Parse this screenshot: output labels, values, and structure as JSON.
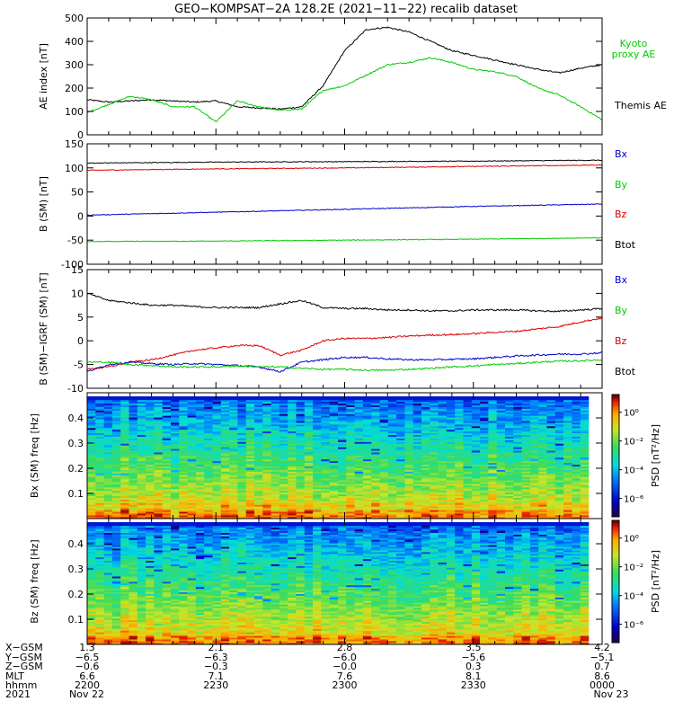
{
  "title": "GEO−KOMPSAT−2A 128.2E (2021−11−22) recalib dataset",
  "colors": {
    "black": "#000000",
    "red": "#dd0000",
    "green": "#00cc00",
    "blue": "#0000cc"
  },
  "colorbar": {
    "label": "PSD [nT²/Hz]",
    "ticks": [
      {
        "label": "10⁰",
        "frac": 0.855
      },
      {
        "label": "10⁻²",
        "frac": 0.62
      },
      {
        "label": "10⁻⁴",
        "frac": 0.385
      },
      {
        "label": "10⁻⁶",
        "frac": 0.15
      }
    ]
  },
  "footer": {
    "row_labels": [
      "X−GSM",
      "Y−GSM",
      "Z−GSM",
      "MLT",
      "hhmm",
      "2021"
    ],
    "columns": [
      {
        "t": 0,
        "vals": [
          "1.3",
          "−6.5",
          "−0.6",
          "6.6",
          "2200",
          "Nov 22"
        ]
      },
      {
        "t": 30,
        "vals": [
          "2.1",
          "−6.3",
          "−0.3",
          "7.1",
          "2230",
          ""
        ]
      },
      {
        "t": 60,
        "vals": [
          "2.8",
          "−6.0",
          "−0.0",
          "7.6",
          "2300",
          ""
        ]
      },
      {
        "t": 90,
        "vals": [
          "3.5",
          "−5.6",
          "0.3",
          "8.1",
          "2330",
          ""
        ]
      },
      {
        "t": 120,
        "vals": [
          "4.2",
          "−5.1",
          "0.7",
          "8.6",
          "0000",
          "Nov 23"
        ]
      }
    ]
  },
  "chart_data": [
    {
      "type": "line",
      "ylabel": "AE index [nT]",
      "xlim": [
        0,
        120
      ],
      "ylim": [
        0,
        500
      ],
      "yticks": [
        0,
        100,
        200,
        300,
        400,
        500
      ],
      "legend": [
        "Kyoto proxy AE",
        "Themis AE"
      ],
      "x": [
        0,
        5,
        10,
        15,
        20,
        25,
        30,
        35,
        40,
        45,
        50,
        55,
        60,
        65,
        70,
        75,
        80,
        85,
        90,
        95,
        100,
        105,
        110,
        115,
        120
      ],
      "series": [
        {
          "name": "Themis AE",
          "color": "black",
          "values": [
            150,
            140,
            145,
            150,
            145,
            140,
            145,
            120,
            115,
            110,
            120,
            210,
            360,
            450,
            460,
            440,
            400,
            360,
            340,
            320,
            300,
            280,
            265,
            285,
            300
          ]
        },
        {
          "name": "Kyoto proxy AE",
          "color": "green",
          "values": [
            95,
            130,
            165,
            150,
            120,
            120,
            55,
            145,
            120,
            105,
            110,
            190,
            210,
            255,
            300,
            310,
            330,
            310,
            280,
            270,
            250,
            200,
            170,
            120,
            65
          ]
        }
      ]
    },
    {
      "type": "line",
      "ylabel": "B (SM) [nT]",
      "xlim": [
        0,
        120
      ],
      "ylim": [
        -100,
        150
      ],
      "yticks": [
        -100,
        -50,
        0,
        50,
        100,
        150
      ],
      "legend": [
        "Bx",
        "By",
        "Bz",
        "Btot"
      ],
      "x": [
        0,
        30,
        60,
        90,
        120
      ],
      "series": [
        {
          "name": "Btot",
          "color": "black",
          "values": [
            110,
            112,
            113,
            114,
            116
          ]
        },
        {
          "name": "Bz",
          "color": "red",
          "values": [
            95,
            98,
            100,
            103,
            106
          ]
        },
        {
          "name": "Bx",
          "color": "blue",
          "values": [
            2,
            8,
            14,
            20,
            25
          ]
        },
        {
          "name": "By",
          "color": "green",
          "values": [
            -53,
            -52,
            -50,
            -48,
            -45
          ]
        }
      ]
    },
    {
      "type": "line",
      "ylabel": "B (SM)−IGRF (SM) [nT]",
      "xlim": [
        0,
        120
      ],
      "ylim": [
        -10,
        15
      ],
      "yticks": [
        -10,
        -5,
        0,
        5,
        10,
        15
      ],
      "legend": [
        "Bx",
        "By",
        "Bz",
        "Btot"
      ],
      "x": [
        0,
        5,
        10,
        15,
        20,
        25,
        30,
        35,
        40,
        45,
        50,
        55,
        60,
        65,
        70,
        75,
        80,
        85,
        90,
        95,
        100,
        105,
        110,
        115,
        120
      ],
      "series": [
        {
          "name": "Btot",
          "color": "black",
          "values": [
            10,
            8.5,
            8,
            7.5,
            7.5,
            7.2,
            7,
            7,
            7,
            7.8,
            8.5,
            7,
            6.8,
            6.8,
            6.5,
            6.5,
            6.3,
            6.3,
            6.5,
            6.5,
            6.5,
            6.3,
            6.2,
            6.5,
            6.8
          ]
        },
        {
          "name": "Bz",
          "color": "red",
          "values": [
            -6,
            -5.5,
            -4.5,
            -4,
            -3,
            -2,
            -1.5,
            -1,
            -1,
            -3,
            -2,
            0,
            0.5,
            0.5,
            0.7,
            1,
            1.2,
            1.3,
            1.5,
            1.8,
            2,
            2.5,
            3,
            4,
            4.8
          ]
        },
        {
          "name": "Bx",
          "color": "blue",
          "values": [
            -6.5,
            -5,
            -4.5,
            -4.8,
            -5,
            -4.8,
            -5,
            -5.2,
            -5.5,
            -6.5,
            -4.5,
            -4,
            -3.5,
            -3.5,
            -3.8,
            -4,
            -4,
            -3.9,
            -3.8,
            -3.5,
            -3.2,
            -3,
            -2.8,
            -2.8,
            -2.5
          ]
        },
        {
          "name": "By",
          "color": "green",
          "values": [
            -4.5,
            -4.5,
            -5,
            -5.2,
            -5.5,
            -5.5,
            -5.5,
            -5.3,
            -5.5,
            -5.5,
            -5.8,
            -6,
            -6,
            -6.2,
            -6.2,
            -6,
            -5.8,
            -5.5,
            -5.3,
            -5,
            -4.8,
            -4.5,
            -4.3,
            -4.2,
            -4
          ]
        }
      ]
    },
    {
      "type": "heatmap",
      "ylabel": "Bx (SM) freq [Hz]",
      "xlim": [
        0,
        120
      ],
      "ylim": [
        0,
        0.5
      ],
      "yticks": [
        0.1,
        0.2,
        0.3,
        0.4
      ],
      "colorbar": "PSD [nT²/Hz]",
      "log_psd_range": [
        -8,
        2
      ]
    },
    {
      "type": "heatmap",
      "ylabel": "Bz (SM) freq [Hz]",
      "xlim": [
        0,
        120
      ],
      "ylim": [
        0,
        0.5
      ],
      "yticks": [
        0.1,
        0.2,
        0.3,
        0.4
      ],
      "colorbar": "PSD [nT²/Hz]",
      "log_psd_range": [
        -8,
        2
      ]
    }
  ]
}
